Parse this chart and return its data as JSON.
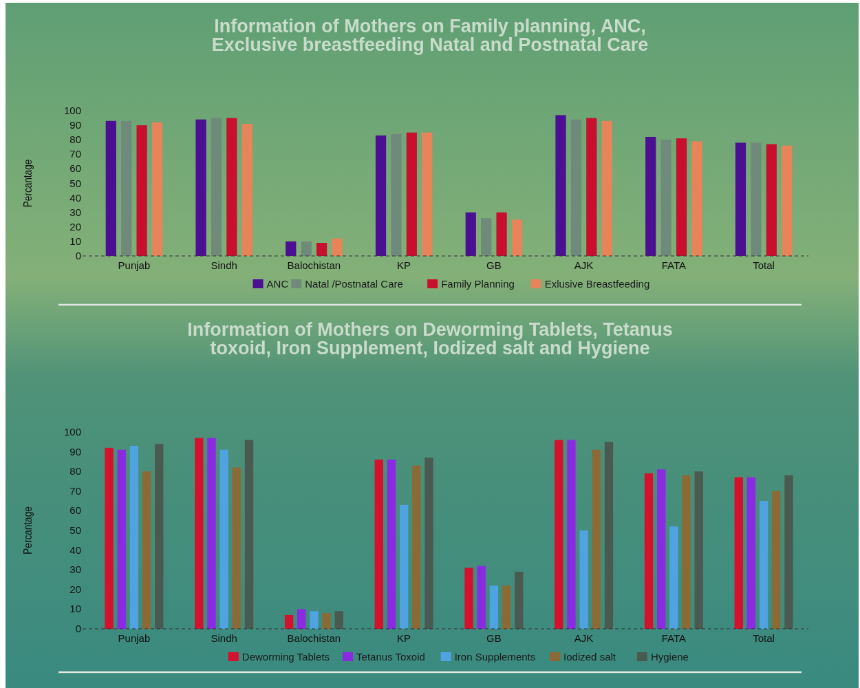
{
  "chart_data": [
    {
      "type": "bar",
      "title": "Information of Mothers on Family planning, ANC, Exclusive breastfeeding Natal and Postnatal Care",
      "ylabel": "Percantage",
      "categories": [
        "Punjab",
        "Sindh",
        "Balochistan",
        "KP",
        "GB",
        "AJK",
        "FATA",
        "Total"
      ],
      "series": [
        {
          "name": "ANC",
          "color": "#4b0f92",
          "values": [
            93,
            94,
            10,
            83,
            30,
            97,
            82,
            78
          ]
        },
        {
          "name": "Natal /Postnatal Care",
          "color": "#6f8a7a",
          "values": [
            93,
            95,
            10,
            84,
            26,
            94,
            80,
            78
          ]
        },
        {
          "name": "Family Planning",
          "color": "#c8102e",
          "values": [
            90,
            95,
            9,
            85,
            30,
            95,
            81,
            77
          ]
        },
        {
          "name": "Exlusive Breastfeeding",
          "color": "#e8845a",
          "values": [
            92,
            91,
            12,
            85,
            25,
            93,
            79,
            76
          ]
        }
      ],
      "ylim": [
        0,
        100
      ],
      "yticks": [
        0,
        10,
        20,
        30,
        40,
        50,
        60,
        70,
        80,
        90,
        100
      ],
      "grid": false,
      "legend": "bottom"
    },
    {
      "type": "bar",
      "title": "Information of Mothers on Deworming Tablets, Tetanus toxoid, Iron Supplement, Iodized salt and Hygiene",
      "ylabel": "Percantage",
      "categories": [
        "Punjab",
        "Sindh",
        "Balochistan",
        "KP",
        "GB",
        "AJK",
        "FATA",
        "Total"
      ],
      "series": [
        {
          "name": "Deworming Tablets",
          "color": "#d4122e",
          "values": [
            92,
            97,
            7,
            86,
            31,
            96,
            79,
            77
          ]
        },
        {
          "name": "Tetanus Toxoid",
          "color": "#8a2be2",
          "values": [
            91,
            97,
            10,
            86,
            32,
            96,
            81,
            77
          ]
        },
        {
          "name": "Iron Supplements",
          "color": "#4fa3e0",
          "values": [
            93,
            91,
            9,
            63,
            22,
            50,
            52,
            65
          ]
        },
        {
          "name": "Iodized salt",
          "color": "#8b6a35",
          "values": [
            80,
            82,
            8,
            83,
            22,
            91,
            78,
            70
          ]
        },
        {
          "name": "Hygiene",
          "color": "#4a5a50",
          "values": [
            94,
            96,
            9,
            87,
            29,
            95,
            80,
            78
          ]
        }
      ],
      "ylim": [
        0,
        100
      ],
      "yticks": [
        0,
        10,
        20,
        30,
        40,
        50,
        60,
        70,
        80,
        90,
        100
      ],
      "grid": false,
      "legend": "bottom"
    }
  ]
}
